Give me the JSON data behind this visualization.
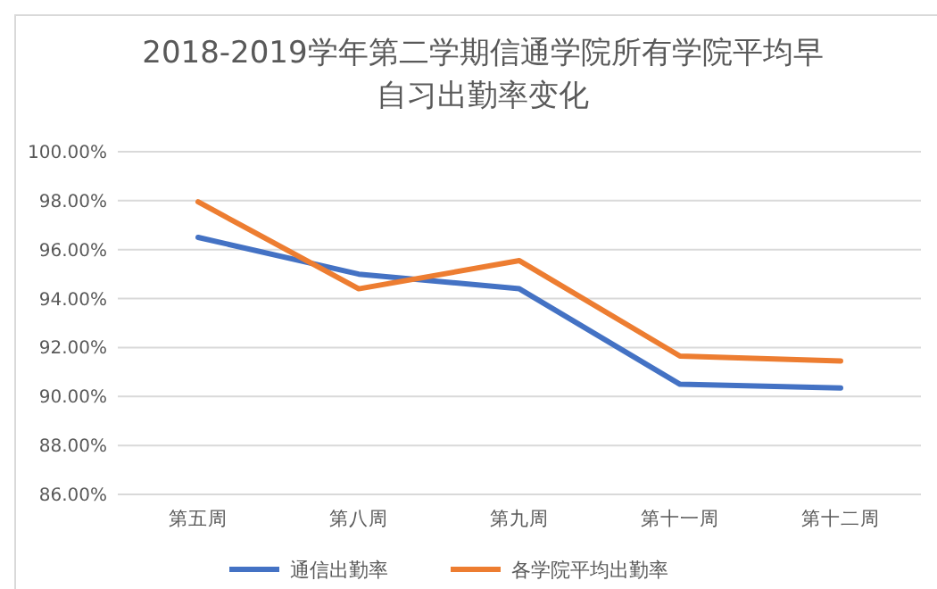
{
  "chart_data": {
    "type": "line",
    "title": "2018-2019学年第二学期信通学院所有学院平均早自习出勤率变化",
    "categories": [
      "第五周",
      "第八周",
      "第九周",
      "第十一周",
      "第十二周"
    ],
    "series": [
      {
        "name": "通信出勤率",
        "color": "#4472c4",
        "values": [
          96.5,
          95.0,
          94.4,
          90.5,
          90.35
        ]
      },
      {
        "name": "各学院平均出勤率",
        "color": "#ed7d31",
        "values": [
          97.95,
          94.4,
          95.55,
          91.65,
          91.45
        ]
      }
    ],
    "ylim": [
      86,
      100
    ],
    "yticks": [
      {
        "value": 86,
        "label": "86.00%"
      },
      {
        "value": 88,
        "label": "88.00%"
      },
      {
        "value": 90,
        "label": "90.00%"
      },
      {
        "value": 92,
        "label": "92.00%"
      },
      {
        "value": 94,
        "label": "94.00%"
      },
      {
        "value": 96,
        "label": "96.00%"
      },
      {
        "value": 98,
        "label": "98.00%"
      },
      {
        "value": 100,
        "label": "100.00%"
      }
    ],
    "grid": "y",
    "legend": "bottom",
    "marker": "none",
    "line_style": "solid"
  }
}
